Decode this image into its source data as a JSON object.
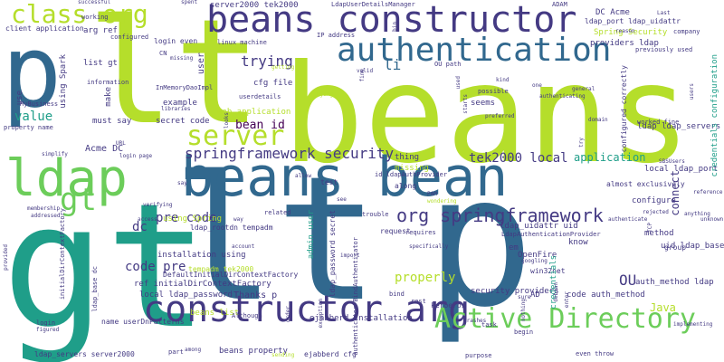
{
  "palette": {
    "background": "#ffffff",
    "lime": "#b5de2b",
    "green": "#6ccd5a",
    "teal": "#1f9e89",
    "blue": "#31688e",
    "indigo": "#443a83",
    "purple": "#440154",
    "yellow": "#fde725"
  },
  "words": {
    "beans": "beans",
    "lt_main": "lt",
    "gt_main": "gt",
    "p_main": "p",
    "lt_big": "lt",
    "p_left": "p",
    "beans_constructor": "beans constructor",
    "beans_bean": "beans bean",
    "ldap": "ldap",
    "constructor_arg": "constructor arg",
    "active_directory": "Active Directory",
    "authentication": "authentication",
    "class_org": "class org",
    "server": "server",
    "springframework_security": "springframework security",
    "org_springframework": "org springframework",
    "gt_small": "gt",
    "tek2000_local": "tek2000 local",
    "application": "application",
    "pre_code": "pre code",
    "pre_code_2": "pre code",
    "bean_id": "bean id",
    "trying": "trying",
    "dc": "dc",
    "value": "value",
    "ou": "OU",
    "code_pre": "code pre",
    "properly": "properly",
    "java": "Java",
    "acme_dc": "Acme DC",
    "li": "li",
    "connect": "connect",
    "server2000_tek2000": "server2000 tek2000",
    "ldapuserdetailsmanager": "LdapUserDetailsManager",
    "adam": "ADAM",
    "dc_acme": "DC Acme",
    "ldap_port_uidattr": "ldap_port ldap_uidattr",
    "arg_ref": "arg ref",
    "client_application": "client application",
    "spring_security": "Spring Security",
    "providers_ldap": "providers ldap",
    "list_gt": "list gt",
    "cfg_file": "cfg file",
    "web_application": "web application",
    "ldap_ldap_servers": "ldap ldap_servers",
    "local_ldap_port": "local ldap_port",
    "almost_exclusively": "almost exclusively",
    "configure": "configure",
    "ldap_rootdn_tempadm": "ldap_rootdn tempadm",
    "ref_initialdircontextfactory": "ref initialDirContextFactory",
    "local_ldap_password": "local ldap_password",
    "thanks_p": "Thanks p",
    "beans_list": "beans list",
    "beans_property": "beans property",
    "ejabberd_cfg": "ejabberd cfg",
    "ejabberd_installation": "ejabberd installation",
    "security_providers": "security providers",
    "code_auth_method": "code auth_method",
    "auth_method_ldap": "auth_method ldap",
    "uid_ldap_base": "uid ldap_base",
    "ldap_uidattr_uid": "ldap_uidattr uid",
    "installation_using": "installation using",
    "tempadm_tek2000": "tempadm tek2000",
    "using_spring": "using Spring",
    "openfire": "OpenFire",
    "win32net": "win32net",
    "kerberos": "kerberos",
    "ad": "AD",
    "em": "em",
    "know": "know",
    "method": "method",
    "group": "group",
    "seems": "seems",
    "possible": "possible",
    "missing": "missing",
    "thing": "thing",
    "along": "along",
    "test": "test",
    "must_say": "must say",
    "secret_code": "secret code",
    "example": "example",
    "make": "make",
    "login_even": "login even",
    "ldap_servers_server2000": "ldap_servers server2000",
    "using_spark": "using Spark",
    "ldap_password_secret": "ldap_password secret",
    "admin_user": "admin user",
    "credentials_configuration": "credentials configuration",
    "configured_correctly": "configured correctly",
    "credentials": "credentials",
    "user": "user",
    "use": "use",
    "information": "information",
    "working": "working",
    "successful": "successful",
    "spent": "spent",
    "ip_address": "IP address",
    "linux_machine": "linux machine",
    "ou_path": "OU path",
    "previously_used": "previously used",
    "last": "Last",
    "company": "company",
    "reason": "reason",
    "ldapauthprovider": "id ldapAuthProvider",
    "ldapauthenticationprovider": "LdapAuthenticationProvider",
    "bindauthenticator": "authenticator BindAuthenticator",
    "initialdircontextfactory": "initialDirContextFactory",
    "defaultinitialdircontextfactory": "DefaultInitialDirContextFactory",
    "name_userdnpatterns": "name userDnPatterns",
    "although": "Although",
    "account": "account",
    "related": "related",
    "request": "request",
    "requires": "requires",
    "bind": "bind",
    "rest": "rest",
    "task": "task",
    "begin": "begin",
    "even_throw": "even throw",
    "purpose": "purpose",
    "sending": "sending",
    "among": "among",
    "part": "part",
    "login": "login",
    "figured": "figured",
    "membership": "membership",
    "addressed": "addressed",
    "configured": "configured",
    "mybusiness": "MyBusiness",
    "property_name": "property name",
    "cn": "CN",
    "inmemorydaoimpl": "InMemoryDaoImpl",
    "userdetails": "userdetails",
    "django": "Django",
    "kind": "kind",
    "one": "one",
    "general": "general",
    "domain": "domain",
    "worked_fine": "worked fine",
    "reference": "reference",
    "unknown": "unknown",
    "anything": "anything",
    "rejected": "rejected",
    "sbsusers": "SBSUsers",
    "trouble": "trouble",
    "googling": "googling",
    "specifically": "specifically",
    "import": "import",
    "exception": "exception",
    "order": "order",
    "way": "way",
    "access": "access",
    "verifying": "verifying",
    "simplify": "simplify",
    "enter": "enter",
    "debian": "debian",
    "sure": "sure",
    "implementing": "implementing",
    "crashes": "crashes",
    "authenticate": "authenticate",
    "authenticating": "authenticating",
    "starts": "starts",
    "preferred": "preferred",
    "valid": "valid",
    "getting": "getting",
    "fine": "fine",
    "missing_small": "missing",
    "libraries": "libraries",
    "try": "try",
    "wondering": "wondering",
    "pam": "PAM",
    "allow": "allow",
    "see": "see",
    "users": "users",
    "url": "URL",
    "used": "used",
    "nothing": "nothing",
    "looks": "looks",
    "provided": "provided",
    "ldap_base_dc": "ldap_base dc",
    "initialdir_v": "initialDirContextFactory",
    "login_page": "login page",
    "say": "say",
    "tcp": "TCP",
    "bin": "bin"
  }
}
